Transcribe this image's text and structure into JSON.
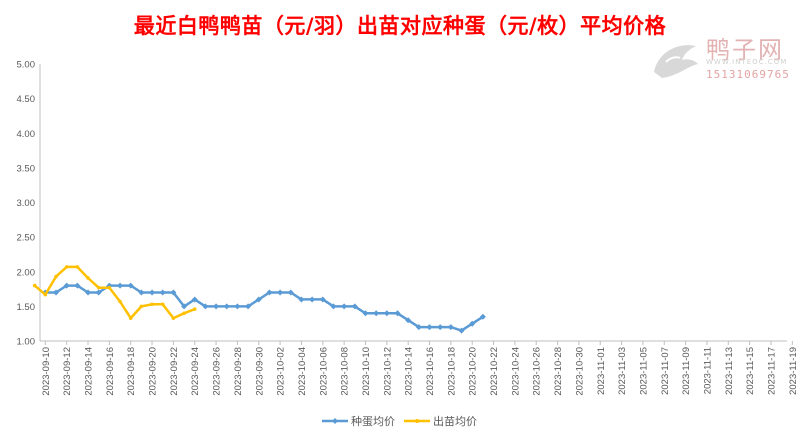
{
  "chart_data": {
    "type": "line",
    "title": "最近白鸭鸭苗（元/羽）出苗对应种蛋（元/枚）平均价格",
    "xlabel": "",
    "ylabel": "",
    "ylim": [
      1.0,
      5.0
    ],
    "yticks": [
      "5.00",
      "4.50",
      "4.00",
      "3.50",
      "3.00",
      "2.50",
      "2.00",
      "1.50",
      "1.00"
    ],
    "x_start": "2023-09-10",
    "x_labels": [
      "2023-09-10",
      "2023-09-12",
      "2023-09-14",
      "2023-09-16",
      "2023-09-18",
      "2023-09-20",
      "2023-09-22",
      "2023-09-24",
      "2023-09-26",
      "2023-09-28",
      "2023-09-30",
      "2023-10-02",
      "2023-10-04",
      "2023-10-06",
      "2023-10-08",
      "2023-10-10",
      "2023-10-12",
      "2023-10-14",
      "2023-10-16",
      "2023-10-18",
      "2023-10-20",
      "2023-10-22",
      "2023-10-24",
      "2023-10-26",
      "2023-10-28",
      "2023-10-30",
      "2023-11-01",
      "2023-11-03",
      "2023-11-05",
      "2023-11-07",
      "2023-11-09",
      "2023-11-11",
      "2023-11-13",
      "2023-11-15",
      "2023-11-17",
      "2023-11-19"
    ],
    "legend_position": "bottom",
    "grid": false,
    "series": [
      {
        "name": "种蛋均价",
        "color": "#5b9bd5",
        "marker": "diamond",
        "points": [
          [
            "2023-09-10",
            1.7
          ],
          [
            "2023-09-11",
            1.7
          ],
          [
            "2023-09-12",
            1.8
          ],
          [
            "2023-09-13",
            1.8
          ],
          [
            "2023-09-14",
            1.7
          ],
          [
            "2023-09-15",
            1.7
          ],
          [
            "2023-09-16",
            1.8
          ],
          [
            "2023-09-17",
            1.8
          ],
          [
            "2023-09-18",
            1.8
          ],
          [
            "2023-09-19",
            1.7
          ],
          [
            "2023-09-20",
            1.7
          ],
          [
            "2023-09-21",
            1.7
          ],
          [
            "2023-09-22",
            1.7
          ],
          [
            "2023-09-23",
            1.5
          ],
          [
            "2023-09-24",
            1.6
          ],
          [
            "2023-09-25",
            1.5
          ],
          [
            "2023-09-26",
            1.5
          ],
          [
            "2023-09-27",
            1.5
          ],
          [
            "2023-09-28",
            1.5
          ],
          [
            "2023-09-29",
            1.5
          ],
          [
            "2023-09-30",
            1.6
          ],
          [
            "2023-10-01",
            1.7
          ],
          [
            "2023-10-02",
            1.7
          ],
          [
            "2023-10-03",
            1.7
          ],
          [
            "2023-10-04",
            1.6
          ],
          [
            "2023-10-05",
            1.6
          ],
          [
            "2023-10-06",
            1.6
          ],
          [
            "2023-10-07",
            1.5
          ],
          [
            "2023-10-08",
            1.5
          ],
          [
            "2023-10-09",
            1.5
          ],
          [
            "2023-10-10",
            1.4
          ],
          [
            "2023-10-11",
            1.4
          ],
          [
            "2023-10-12",
            1.4
          ],
          [
            "2023-10-13",
            1.4
          ],
          [
            "2023-10-14",
            1.3
          ],
          [
            "2023-10-15",
            1.2
          ],
          [
            "2023-10-16",
            1.2
          ],
          [
            "2023-10-17",
            1.2
          ],
          [
            "2023-10-18",
            1.2
          ],
          [
            "2023-10-19",
            1.15
          ],
          [
            "2023-10-20",
            1.25
          ],
          [
            "2023-10-21",
            1.35
          ]
        ]
      },
      {
        "name": "出苗均价",
        "color": "#ffc000",
        "marker": "circle",
        "points": [
          [
            "2023-09-09",
            1.8
          ],
          [
            "2023-09-10",
            1.67
          ],
          [
            "2023-09-11",
            1.93
          ],
          [
            "2023-09-12",
            2.07
          ],
          [
            "2023-09-13",
            2.07
          ],
          [
            "2023-09-14",
            1.91
          ],
          [
            "2023-09-15",
            1.77
          ],
          [
            "2023-09-16",
            1.77
          ],
          [
            "2023-09-17",
            1.57
          ],
          [
            "2023-09-18",
            1.33
          ],
          [
            "2023-09-19",
            1.5
          ],
          [
            "2023-09-20",
            1.53
          ],
          [
            "2023-09-21",
            1.53
          ],
          [
            "2023-09-22",
            1.33
          ],
          [
            "2023-09-23",
            1.4
          ],
          [
            "2023-09-24",
            1.46
          ]
        ]
      }
    ]
  },
  "watermark": {
    "brand": "鸭子网",
    "site": "WWW.INTEOC.COM",
    "phone": "15131069765"
  }
}
